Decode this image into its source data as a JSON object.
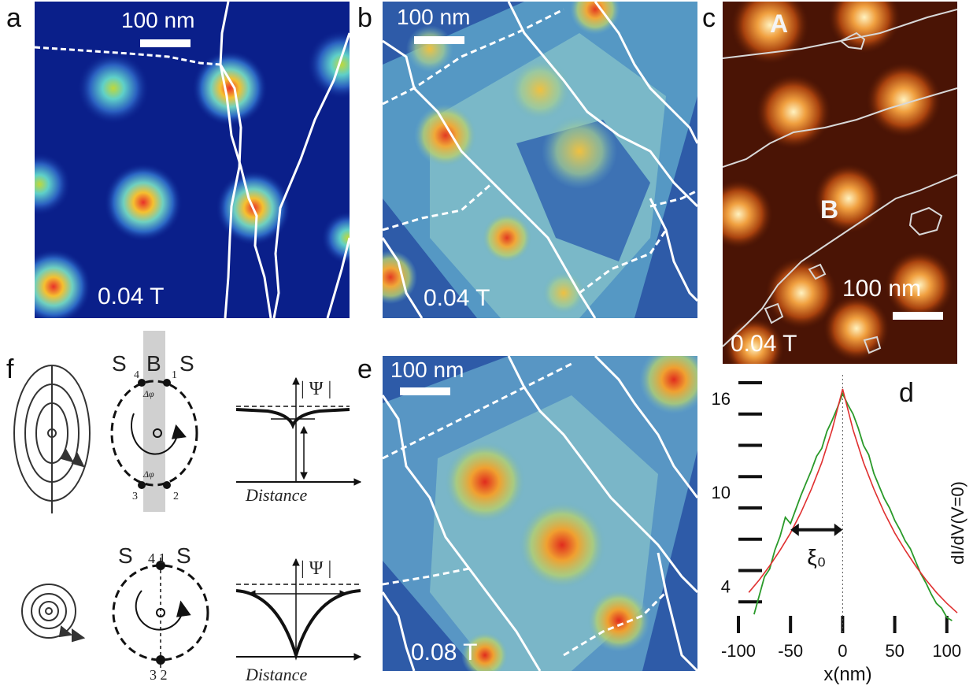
{
  "panels": {
    "a": {
      "label": "a",
      "scale_text": "100 nm",
      "field_text": "0.04 T"
    },
    "b": {
      "label": "b",
      "scale_text": "100 nm",
      "field_text": "0.04 T"
    },
    "c": {
      "label": "c",
      "scale_text": "100 nm",
      "field_text": "0.04 T",
      "region_a": "A",
      "region_b": "B"
    },
    "e": {
      "label": "e",
      "scale_text": "100 nm",
      "field_text": "0.08 T"
    },
    "f": {
      "label": "f",
      "top_s_left": "S",
      "top_b": "B",
      "top_s_right": "S",
      "top_num_4": "4",
      "top_num_1": "1",
      "top_num_3": "3",
      "top_num_2": "2",
      "top_phase_label": "Δφ",
      "psi_label": "| Ψ |",
      "distance_label": "Distance",
      "bottom_s_left": "S",
      "bottom_num_top": "4 1",
      "bottom_s_right": "S",
      "bottom_num_bottom": "3 2"
    },
    "d": {
      "label": "d",
      "ylabel": "dI/dV(V=0)",
      "xlabel": "x(nm)",
      "xi_label": "ξ₀"
    }
  },
  "chart_data": {
    "type": "line",
    "title": "",
    "xlabel": "x(nm)",
    "ylabel": "dI/dV(V=0)",
    "xlim": [
      -100,
      110
    ],
    "ylim": [
      1,
      17.5
    ],
    "x_ticks": [
      -100,
      -50,
      0,
      50,
      100
    ],
    "y_ticks": [
      4,
      10,
      16
    ],
    "annotations": [
      "ξ₀"
    ],
    "series": [
      {
        "color": "#2a9a2a",
        "x": [
          -85,
          -80,
          -75,
          -70,
          -65,
          -60,
          -55,
          -50,
          -45,
          -40,
          -35,
          -30,
          -25,
          -20,
          -15,
          -10,
          -5,
          0,
          5,
          10,
          15,
          20,
          25,
          30,
          35,
          40,
          45,
          50,
          55,
          60,
          65,
          70,
          75,
          80,
          85,
          90,
          95,
          100,
          105
        ],
        "y": [
          2.2,
          3.4,
          4.6,
          5.1,
          6.3,
          7.2,
          8.4,
          8.0,
          8.9,
          9.8,
          10.6,
          11.4,
          12.3,
          12.8,
          13.9,
          14.6,
          15.4,
          16.3,
          15.6,
          15.0,
          14.1,
          13.0,
          12.4,
          11.2,
          10.4,
          9.6,
          9.0,
          8.2,
          7.6,
          6.9,
          6.4,
          5.6,
          4.8,
          4.2,
          3.5,
          2.9,
          2.6,
          2.0,
          1.8
        ]
      },
      {
        "color": "#e03030",
        "x": [
          -90,
          -80,
          -70,
          -60,
          -50,
          -40,
          -30,
          -20,
          -10,
          0,
          10,
          20,
          30,
          40,
          50,
          60,
          70,
          80,
          90,
          100,
          110
        ],
        "y": [
          3.6,
          4.4,
          5.3,
          6.3,
          7.4,
          8.7,
          10.2,
          11.9,
          14.0,
          16.6,
          14.0,
          11.9,
          10.2,
          8.7,
          7.4,
          6.3,
          5.3,
          4.4,
          3.6,
          2.9,
          2.3
        ]
      }
    ]
  }
}
